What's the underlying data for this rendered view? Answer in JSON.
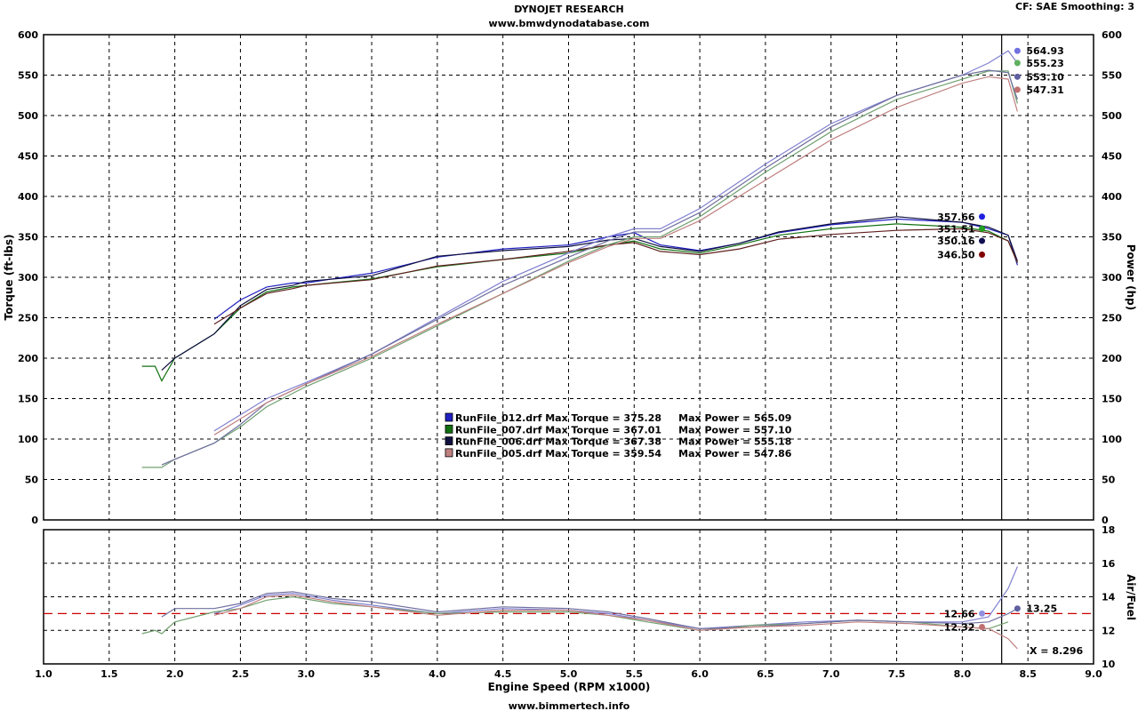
{
  "header": {
    "title": "DYNOJET RESEARCH",
    "subtitle": "www.bmwdynodatabase.com",
    "settings": "CF: SAE  Smoothing: 3",
    "footer": "www.bimmertech.info"
  },
  "colors": {
    "run_012": "#2020c0",
    "run_007": "#107010",
    "run_006": "#101040",
    "run_005": "#602020",
    "power_012": "#8080d0",
    "power_007": "#70a070",
    "power_006": "#7070a0",
    "power_005": "#c08080",
    "target_line": "#cc0000"
  },
  "chart_data": [
    {
      "type": "line",
      "name": "torque-power",
      "xlabel": "Engine Speed (RPM x1000)",
      "ylabel": "Torque (ft-lbs)",
      "y2label": "Power (hp)",
      "xlim": [
        1.0,
        9.0
      ],
      "ylim": [
        0,
        600
      ],
      "y2lim": [
        0,
        600
      ],
      "xticks": [
        "1.0",
        "1.5",
        "2.0",
        "2.5",
        "3.0",
        "3.5",
        "4.0",
        "4.5",
        "5.0",
        "5.5",
        "6.0",
        "6.5",
        "7.0",
        "7.5",
        "8.0",
        "8.5",
        "9.0"
      ],
      "yticks": [
        "0",
        "50",
        "100",
        "150",
        "200",
        "250",
        "300",
        "350",
        "400",
        "450",
        "500",
        "550",
        "600"
      ],
      "grid": true,
      "cursor_x": 8.3,
      "legend": [
        {
          "text": "RunFile_012.drf Max Torque = 375.28     Max Power = 565.09",
          "color": "#2020c0"
        },
        {
          "text": "RunFile_007.drf Max Torque = 367.01     Max Power = 557.10",
          "color": "#107010"
        },
        {
          "text": "RunFile_006.drf Max Torque = 367.38     Max Power = 555.18",
          "color": "#101040"
        },
        {
          "text": "RunFile_005.drf Max Torque = 359.54     Max Power = 547.86",
          "color": "#c08080"
        }
      ],
      "cursor_values_power": [
        {
          "label": "564.93",
          "y": 580,
          "x": 8.42,
          "color": "#7070e0"
        },
        {
          "label": "555.23",
          "y": 565,
          "x": 8.42,
          "color": "#60b060"
        },
        {
          "label": "553.10",
          "y": 548,
          "x": 8.42,
          "color": "#6060a0"
        },
        {
          "label": "547.31",
          "y": 532,
          "x": 8.42,
          "color": "#c07070"
        }
      ],
      "cursor_values_torque": [
        {
          "label": "357.66",
          "y": 375,
          "x": 8.15,
          "color": "#2020e0"
        },
        {
          "label": "351.51",
          "y": 360,
          "x": 8.15,
          "color": "#20a020"
        },
        {
          "label": "350.16",
          "y": 345,
          "x": 8.15,
          "color": "#101050"
        },
        {
          "label": "346.50",
          "y": 328,
          "x": 8.15,
          "color": "#800000"
        }
      ],
      "series": [
        {
          "name": "RunFile_012.drf Torque",
          "color": "#2020c0",
          "x": [
            2.3,
            2.5,
            2.7,
            2.9,
            3.0,
            3.2,
            3.5,
            4.0,
            4.5,
            5.0,
            5.3,
            5.5,
            5.7,
            6.0,
            6.3,
            6.6,
            7.0,
            7.5,
            8.0,
            8.2,
            8.35,
            8.42
          ],
          "y": [
            248,
            272,
            288,
            293,
            293,
            298,
            305,
            325,
            335,
            340,
            350,
            355,
            340,
            333,
            342,
            355,
            365,
            372,
            368,
            360,
            352,
            315
          ]
        },
        {
          "name": "RunFile_007.drf Torque",
          "color": "#107010",
          "x": [
            1.75,
            1.85,
            1.9,
            2.0,
            2.3,
            2.5,
            2.7,
            2.9,
            3.0,
            3.5,
            4.0,
            4.5,
            5.0,
            5.3,
            5.5,
            5.7,
            6.0,
            6.3,
            6.6,
            7.0,
            7.5,
            8.0,
            8.2,
            8.35,
            8.42
          ],
          "y": [
            190,
            190,
            172,
            200,
            230,
            262,
            282,
            288,
            290,
            298,
            313,
            322,
            330,
            340,
            345,
            335,
            330,
            340,
            352,
            360,
            366,
            362,
            357,
            345,
            318
          ]
        },
        {
          "name": "RunFile_006.drf Torque",
          "color": "#101040",
          "x": [
            1.9,
            2.0,
            2.3,
            2.5,
            2.7,
            2.9,
            3.0,
            3.5,
            4.0,
            4.5,
            5.0,
            5.3,
            5.5,
            5.7,
            6.0,
            6.3,
            6.6,
            7.0,
            7.5,
            8.0,
            8.2,
            8.35,
            8.42
          ],
          "y": [
            185,
            200,
            230,
            265,
            285,
            290,
            295,
            302,
            326,
            333,
            338,
            346,
            348,
            338,
            332,
            342,
            356,
            366,
            375,
            368,
            362,
            352,
            320
          ]
        },
        {
          "name": "RunFile_005.drf Torque",
          "color": "#602020",
          "x": [
            2.3,
            2.5,
            2.7,
            2.9,
            3.0,
            3.5,
            4.0,
            4.5,
            5.0,
            5.3,
            5.5,
            5.7,
            6.0,
            6.3,
            6.6,
            7.0,
            7.5,
            8.0,
            8.2,
            8.35,
            8.42
          ],
          "y": [
            242,
            262,
            280,
            286,
            290,
            297,
            314,
            322,
            332,
            340,
            343,
            332,
            328,
            335,
            347,
            353,
            358,
            360,
            355,
            345,
            318
          ]
        },
        {
          "name": "RunFile_012.drf Power",
          "color": "#8080d0",
          "x": [
            2.3,
            2.5,
            2.7,
            3.0,
            3.5,
            4.0,
            4.5,
            5.0,
            5.3,
            5.5,
            5.7,
            6.0,
            6.5,
            7.0,
            7.5,
            8.0,
            8.2,
            8.35,
            8.42
          ],
          "y": [
            110,
            130,
            150,
            170,
            205,
            250,
            295,
            330,
            350,
            360,
            360,
            385,
            440,
            490,
            525,
            550,
            565,
            580,
            565
          ]
        },
        {
          "name": "RunFile_007.drf Power",
          "color": "#70a070",
          "x": [
            1.75,
            1.9,
            2.0,
            2.3,
            2.5,
            2.7,
            3.0,
            3.5,
            4.0,
            4.5,
            5.0,
            5.3,
            5.5,
            5.7,
            6.0,
            6.5,
            7.0,
            7.5,
            8.0,
            8.2,
            8.35,
            8.42
          ],
          "y": [
            65,
            65,
            75,
            95,
            115,
            140,
            165,
            200,
            240,
            280,
            320,
            340,
            350,
            350,
            375,
            430,
            480,
            520,
            545,
            555,
            555,
            515
          ]
        },
        {
          "name": "RunFile_006.drf Power",
          "color": "#7070a0",
          "x": [
            1.9,
            2.0,
            2.3,
            2.5,
            2.7,
            3.0,
            3.5,
            4.0,
            4.5,
            5.0,
            5.3,
            5.5,
            5.7,
            6.0,
            6.5,
            7.0,
            7.5,
            8.0,
            8.2,
            8.35,
            8.42
          ],
          "y": [
            68,
            75,
            95,
            118,
            145,
            168,
            205,
            248,
            290,
            325,
            345,
            356,
            356,
            380,
            435,
            486,
            525,
            550,
            556,
            553,
            520
          ]
        },
        {
          "name": "RunFile_005.drf Power",
          "color": "#c08080",
          "x": [
            2.3,
            2.5,
            2.7,
            3.0,
            3.5,
            4.0,
            4.5,
            5.0,
            5.3,
            5.5,
            5.7,
            6.0,
            6.5,
            7.0,
            7.5,
            8.0,
            8.2,
            8.35,
            8.42
          ],
          "y": [
            105,
            125,
            145,
            168,
            202,
            242,
            280,
            318,
            338,
            348,
            348,
            370,
            420,
            470,
            510,
            540,
            548,
            545,
            505
          ]
        }
      ]
    },
    {
      "type": "line",
      "name": "air-fuel",
      "xlabel": "Engine Speed (RPM x1000)",
      "y2label": "Air/Fuel",
      "xlim": [
        1.0,
        9.0
      ],
      "y2lim": [
        10,
        18
      ],
      "y2ticks": [
        "10",
        "12",
        "14",
        "16",
        "18"
      ],
      "grid": true,
      "target_afr": 13.0,
      "cursor_values": [
        {
          "label": "12.66",
          "y": 13.0,
          "x": 8.15,
          "color": "#9090e0",
          "side": "left"
        },
        {
          "label": "12.32",
          "y": 12.2,
          "x": 8.15,
          "color": "#c07070",
          "side": "left"
        },
        {
          "label": "13.25",
          "y": 13.3,
          "x": 8.42,
          "color": "#6060a0",
          "side": "right"
        }
      ],
      "cursor_readout": "X = 8.296",
      "series": [
        {
          "name": "RunFile_012.drf AFR",
          "color": "#8080d0",
          "x": [
            2.3,
            2.5,
            2.7,
            2.9,
            3.2,
            3.5,
            4.0,
            4.5,
            5.0,
            5.3,
            5.6,
            6.0,
            6.4,
            6.8,
            7.2,
            7.6,
            8.0,
            8.2,
            8.35,
            8.42
          ],
          "y": [
            13.0,
            13.5,
            14.1,
            14.2,
            13.8,
            13.5,
            13.0,
            13.3,
            13.2,
            13.0,
            12.6,
            12.1,
            12.3,
            12.5,
            12.6,
            12.5,
            12.5,
            12.8,
            14.5,
            15.8
          ]
        },
        {
          "name": "RunFile_007.drf AFR",
          "color": "#70a070",
          "x": [
            1.75,
            1.85,
            1.9,
            2.0,
            2.3,
            2.5,
            2.7,
            2.9,
            3.2,
            3.5,
            4.0,
            4.5,
            5.0,
            5.3,
            5.6,
            6.0,
            6.4,
            6.8,
            7.2,
            7.6,
            8.0,
            8.2,
            8.35
          ],
          "y": [
            11.8,
            12.0,
            11.8,
            12.5,
            13.1,
            13.3,
            13.8,
            14.0,
            13.6,
            13.4,
            13.0,
            13.1,
            13.1,
            12.9,
            12.5,
            12.0,
            12.3,
            12.4,
            12.6,
            12.5,
            12.2,
            12.1,
            12.5
          ]
        },
        {
          "name": "RunFile_006.drf AFR",
          "color": "#7070a0",
          "x": [
            1.9,
            2.0,
            2.3,
            2.5,
            2.7,
            2.9,
            3.2,
            3.5,
            4.0,
            4.5,
            5.0,
            5.3,
            5.6,
            6.0,
            6.4,
            6.8,
            7.2,
            7.6,
            8.0,
            8.2,
            8.35,
            8.42
          ],
          "y": [
            12.8,
            13.3,
            13.3,
            13.6,
            14.2,
            14.3,
            13.9,
            13.7,
            13.1,
            13.4,
            13.3,
            13.1,
            12.7,
            12.1,
            12.2,
            12.4,
            12.6,
            12.5,
            12.4,
            12.5,
            13.0,
            13.3
          ]
        },
        {
          "name": "RunFile_005.drf AFR",
          "color": "#c08080",
          "x": [
            2.3,
            2.5,
            2.7,
            2.9,
            3.2,
            3.5,
            4.0,
            4.5,
            5.0,
            5.3,
            5.6,
            6.0,
            6.4,
            6.8,
            7.2,
            7.6,
            8.0,
            8.2,
            8.35,
            8.42
          ],
          "y": [
            12.9,
            13.3,
            14.0,
            14.1,
            13.7,
            13.4,
            12.9,
            13.2,
            13.2,
            12.9,
            12.6,
            12.0,
            12.2,
            12.3,
            12.5,
            12.4,
            12.2,
            12.1,
            11.5,
            10.9
          ]
        }
      ]
    }
  ]
}
